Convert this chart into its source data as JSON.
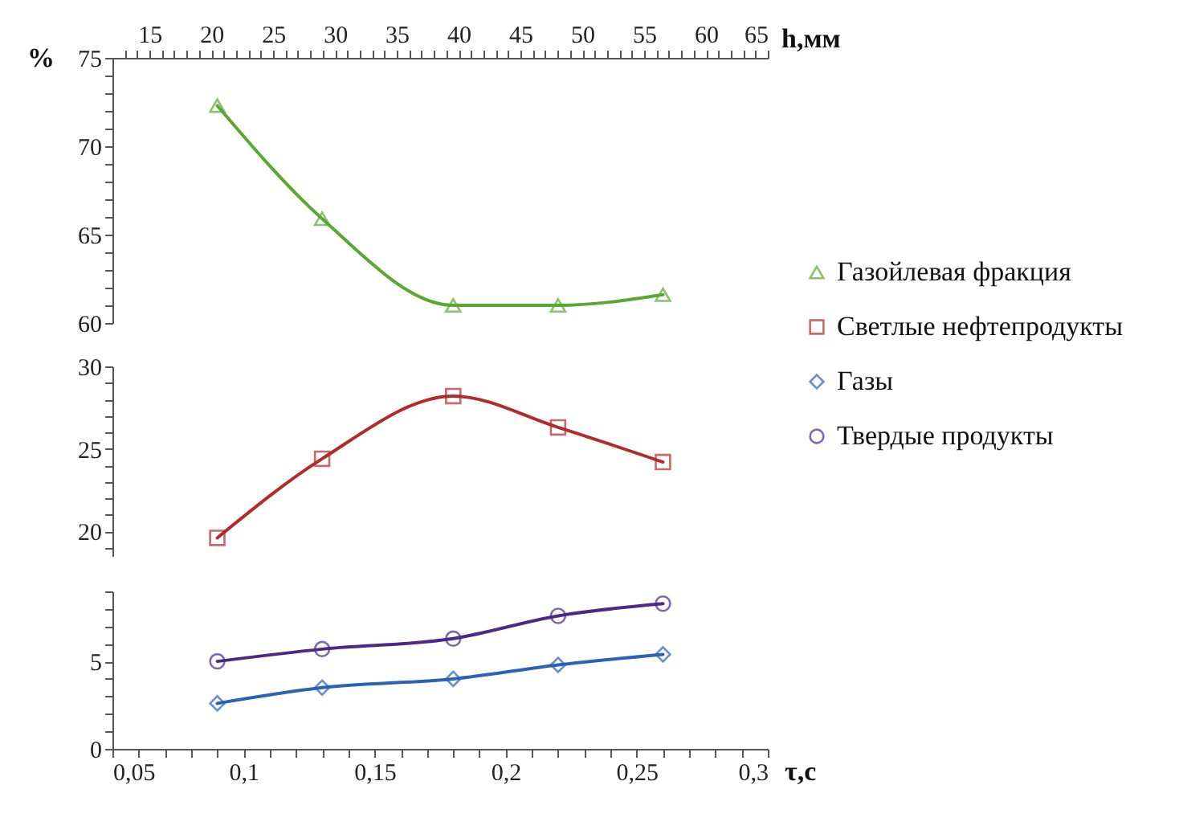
{
  "chart_data": [
    {
      "type": "line",
      "ylabel": "%",
      "x2label": "h,мм",
      "legend": "right",
      "xlim": [
        0.05,
        0.3
      ],
      "ylim": [
        60,
        75
      ],
      "yticks": [
        60,
        {
          "value": 61,
          "label": null
        },
        {
          "value": 62,
          "label": null
        },
        {
          "value": 63,
          "label": null
        },
        {
          "value": 64,
          "label": null
        },
        65,
        {
          "value": 66,
          "label": null
        },
        {
          "value": 67,
          "label": null
        },
        {
          "value": 68,
          "label": null
        },
        {
          "value": 69,
          "label": null
        },
        70,
        {
          "value": 71,
          "label": null
        },
        {
          "value": 72,
          "label": null
        },
        {
          "value": 73,
          "label": null
        },
        {
          "value": 74,
          "label": null
        },
        75
      ],
      "x2lim": [
        12,
        65
      ],
      "x2ticks": [
        {
          "value": 13,
          "label": null
        },
        {
          "value": 14,
          "label": null
        },
        15,
        {
          "value": 16,
          "label": null
        },
        {
          "value": 17,
          "label": null
        },
        {
          "value": 18,
          "label": null
        },
        {
          "value": 19,
          "label": null
        },
        20,
        {
          "value": 21,
          "label": null
        },
        {
          "value": 22,
          "label": null
        },
        {
          "value": 23,
          "label": null
        },
        {
          "value": 24,
          "label": null
        },
        25,
        {
          "value": 26,
          "label": null
        },
        {
          "value": 27,
          "label": null
        },
        {
          "value": 28,
          "label": null
        },
        {
          "value": 29,
          "label": null
        },
        30,
        {
          "value": 31,
          "label": null
        },
        {
          "value": 32,
          "label": null
        },
        {
          "value": 33,
          "label": null
        },
        {
          "value": 34,
          "label": null
        },
        35,
        {
          "value": 36,
          "label": null
        },
        {
          "value": 37,
          "label": null
        },
        {
          "value": 38,
          "label": null
        },
        {
          "value": 39,
          "label": null
        },
        40,
        {
          "value": 41,
          "label": null
        },
        {
          "value": 42,
          "label": null
        },
        {
          "value": 43,
          "label": null
        },
        {
          "value": 44,
          "label": null
        },
        45,
        {
          "value": 46,
          "label": null
        },
        {
          "value": 47,
          "label": null
        },
        {
          "value": 48,
          "label": null
        },
        {
          "value": 49,
          "label": null
        },
        50,
        {
          "value": 51,
          "label": null
        },
        {
          "value": 52,
          "label": null
        },
        {
          "value": 53,
          "label": null
        },
        {
          "value": 54,
          "label": null
        },
        55,
        {
          "value": 56,
          "label": null
        },
        {
          "value": 57,
          "label": null
        },
        {
          "value": 58,
          "label": null
        },
        {
          "value": 59,
          "label": null
        },
        60,
        {
          "value": 61,
          "label": null
        },
        {
          "value": 62,
          "label": null
        },
        {
          "value": 63,
          "label": null
        },
        {
          "value": 64,
          "label": null
        },
        65
      ],
      "x": [
        0.09,
        0.13,
        0.18,
        0.22,
        0.26
      ],
      "series": [
        {
          "name": "Газойлевая фракция",
          "color": "#5aa832",
          "marker": "triangle",
          "values": [
            72.3,
            65.9,
            61.0,
            61.0,
            61.6
          ]
        }
      ]
    },
    {
      "type": "line",
      "tick_labels": "y",
      "legend": "right",
      "xlim": [
        0.05,
        0.3
      ],
      "ylim": [
        18.5,
        30
      ],
      "yticks": [
        {
          "value": 19,
          "label": null
        },
        20,
        {
          "value": 21,
          "label": null
        },
        {
          "value": 22,
          "label": null
        },
        {
          "value": 23,
          "label": null
        },
        {
          "value": 24,
          "label": null
        },
        25,
        {
          "value": 26,
          "label": null
        },
        {
          "value": 27,
          "label": null
        },
        {
          "value": 28,
          "label": null
        },
        {
          "value": 29,
          "label": null
        },
        30
      ],
      "x": [
        0.09,
        0.13,
        0.18,
        0.22,
        0.26
      ],
      "series": [
        {
          "name": "Светлые нефтепродукты",
          "color": "#b22a2a",
          "marker": "square",
          "values": [
            19.6,
            24.4,
            28.2,
            26.3,
            24.2
          ]
        }
      ]
    },
    {
      "type": "line",
      "xlabel": "τ,c",
      "legend": "right",
      "xlim": [
        0.05,
        0.3
      ],
      "ylim": [
        0,
        9
      ],
      "xticks": [
        {
          "value": 0.05,
          "label": "0,05"
        },
        {
          "value": 0.06,
          "label": null
        },
        {
          "value": 0.07,
          "label": null
        },
        {
          "value": 0.08,
          "label": null
        },
        {
          "value": 0.09,
          "label": null
        },
        {
          "value": 0.1,
          "label": "0,1"
        },
        {
          "value": 0.11,
          "label": null
        },
        {
          "value": 0.12,
          "label": null
        },
        {
          "value": 0.13,
          "label": null
        },
        {
          "value": 0.14,
          "label": null
        },
        {
          "value": 0.15,
          "label": "0,15"
        },
        {
          "value": 0.16,
          "label": null
        },
        {
          "value": 0.17,
          "label": null
        },
        {
          "value": 0.18,
          "label": null
        },
        {
          "value": 0.19,
          "label": null
        },
        {
          "value": 0.2,
          "label": "0,2"
        },
        {
          "value": 0.21,
          "label": null
        },
        {
          "value": 0.22,
          "label": null
        },
        {
          "value": 0.23,
          "label": null
        },
        {
          "value": 0.24,
          "label": null
        },
        {
          "value": 0.25,
          "label": "0,25"
        },
        {
          "value": 0.26,
          "label": null
        },
        {
          "value": 0.27,
          "label": null
        },
        {
          "value": 0.28,
          "label": null
        },
        {
          "value": 0.29,
          "label": null
        },
        {
          "value": 0.3,
          "label": "0,3"
        }
      ],
      "yticks": [
        0,
        {
          "value": 1,
          "label": null
        },
        {
          "value": 2,
          "label": null
        },
        {
          "value": 3,
          "label": null
        },
        {
          "value": 4,
          "label": null
        },
        5,
        {
          "value": 6,
          "label": null
        },
        {
          "value": 7,
          "label": null
        },
        {
          "value": 8,
          "label": null
        },
        {
          "value": 9,
          "label": null
        }
      ],
      "x": [
        0.09,
        0.13,
        0.18,
        0.22,
        0.26
      ],
      "series": [
        {
          "name": "Газы",
          "color": "#2a62b8",
          "marker": "diamond",
          "values": [
            2.6,
            3.5,
            4.0,
            4.8,
            5.4
          ]
        },
        {
          "name": "Твердые продукты",
          "color": "#4b2a86",
          "marker": "circle",
          "values": [
            5.0,
            5.7,
            6.3,
            7.6,
            8.3
          ]
        }
      ]
    }
  ]
}
